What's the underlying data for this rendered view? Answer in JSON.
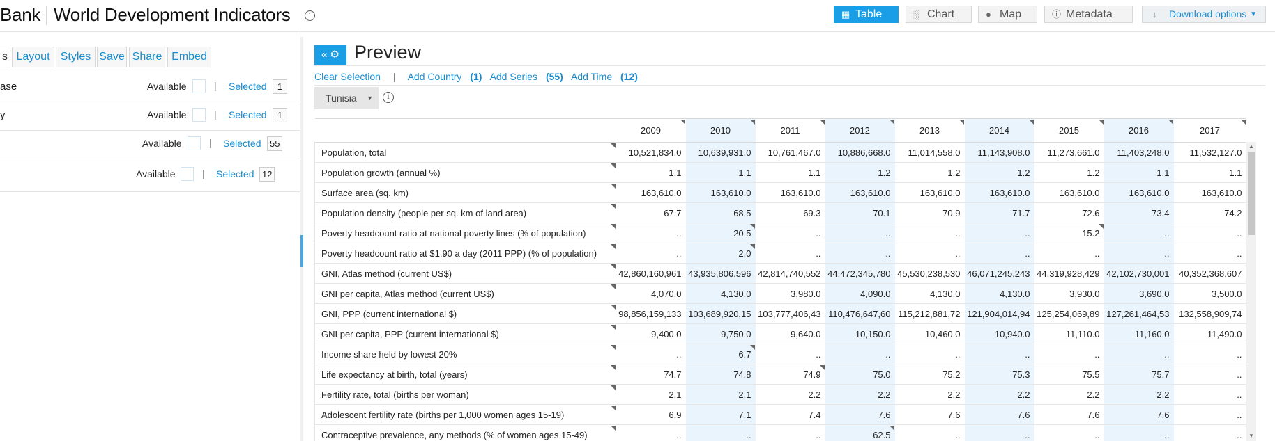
{
  "header": {
    "brand": "Bank",
    "title": "World Development Indicators",
    "views": [
      {
        "label": "Table",
        "icon": "grid-icon",
        "active": true
      },
      {
        "label": "Chart",
        "icon": "bar-chart-icon",
        "active": false
      },
      {
        "label": "Map",
        "icon": "map-pin-icon",
        "active": false
      },
      {
        "label": "Metadata",
        "icon": "info-icon",
        "active": false
      }
    ],
    "download_label": "Download options"
  },
  "left": {
    "tabs": [
      "s",
      "Layout",
      "Styles",
      "Save",
      "Share",
      "Embed"
    ],
    "variables": [
      {
        "name": "ase",
        "available_label": "Available",
        "selected_label": "Selected",
        "selected_count": "1"
      },
      {
        "name": "y",
        "available_label": "Available",
        "selected_label": "Selected",
        "selected_count": "1"
      },
      {
        "name": "",
        "available_label": "Available",
        "selected_label": "Selected",
        "selected_count": "55"
      },
      {
        "name": "",
        "available_label": "Available",
        "selected_label": "Selected",
        "selected_count": "12"
      }
    ]
  },
  "preview": {
    "title": "Preview",
    "clear_selection": "Clear Selection",
    "separator": "|",
    "add_country": "Add Country",
    "add_country_count": "(1)",
    "add_series": "Add Series",
    "add_series_count": "(55)",
    "add_time": "Add Time",
    "add_time_count": "(12)",
    "country": "Tunisia"
  },
  "table": {
    "years": [
      "2009",
      "2010",
      "2011",
      "2012",
      "2013",
      "2014",
      "2015",
      "2016",
      "2017"
    ],
    "rows": [
      {
        "name": "Population, total",
        "values": [
          "10,521,834.0",
          "10,639,931.0",
          "10,761,467.0",
          "10,886,668.0",
          "11,014,558.0",
          "11,143,908.0",
          "11,273,661.0",
          "11,403,248.0",
          "11,532,127.0"
        ]
      },
      {
        "name": "Population growth (annual %)",
        "values": [
          "1.1",
          "1.1",
          "1.1",
          "1.2",
          "1.2",
          "1.2",
          "1.2",
          "1.1",
          "1.1"
        ]
      },
      {
        "name": "Surface area (sq. km)",
        "values": [
          "163,610.0",
          "163,610.0",
          "163,610.0",
          "163,610.0",
          "163,610.0",
          "163,610.0",
          "163,610.0",
          "163,610.0",
          "163,610.0"
        ]
      },
      {
        "name": "Population density (people per sq. km of land area)",
        "values": [
          "67.7",
          "68.5",
          "69.3",
          "70.1",
          "70.9",
          "71.7",
          "72.6",
          "73.4",
          "74.2"
        ]
      },
      {
        "name": "Poverty headcount ratio at national poverty lines (% of population)",
        "values": [
          "..",
          "20.5",
          "..",
          "..",
          "..",
          "..",
          "15.2",
          "..",
          ".."
        ]
      },
      {
        "name": "Poverty headcount ratio at $1.90 a day (2011 PPP) (% of population)",
        "values": [
          "..",
          "2.0",
          "..",
          "..",
          "..",
          "..",
          "..",
          "..",
          ".."
        ]
      },
      {
        "name": "GNI, Atlas method (current US$)",
        "values": [
          "42,860,160,961",
          "43,935,806,596",
          "42,814,740,552",
          "44,472,345,780",
          "45,530,238,530",
          "46,071,245,243",
          "44,319,928,429",
          "42,102,730,001",
          "40,352,368,607"
        ]
      },
      {
        "name": "GNI per capita, Atlas method (current US$)",
        "values": [
          "4,070.0",
          "4,130.0",
          "3,980.0",
          "4,090.0",
          "4,130.0",
          "4,130.0",
          "3,930.0",
          "3,690.0",
          "3,500.0"
        ]
      },
      {
        "name": "GNI, PPP (current international $)",
        "values": [
          "98,856,159,133",
          "103,689,920,15",
          "103,777,406,43",
          "110,476,647,60",
          "115,212,881,72",
          "121,904,014,94",
          "125,254,069,89",
          "127,261,464,53",
          "132,558,909,74"
        ]
      },
      {
        "name": "GNI per capita, PPP (current international $)",
        "values": [
          "9,400.0",
          "9,750.0",
          "9,640.0",
          "10,150.0",
          "10,460.0",
          "10,940.0",
          "11,110.0",
          "11,160.0",
          "11,490.0"
        ]
      },
      {
        "name": "Income share held by lowest 20%",
        "values": [
          "..",
          "6.7",
          "..",
          "..",
          "..",
          "..",
          "..",
          "..",
          ".."
        ]
      },
      {
        "name": "Life expectancy at birth, total (years)",
        "values": [
          "74.7",
          "74.8",
          "74.9",
          "75.0",
          "75.2",
          "75.3",
          "75.5",
          "75.7",
          ".."
        ]
      },
      {
        "name": "Fertility rate, total (births per woman)",
        "values": [
          "2.1",
          "2.1",
          "2.2",
          "2.2",
          "2.2",
          "2.2",
          "2.2",
          "2.2",
          ".."
        ]
      },
      {
        "name": "Adolescent fertility rate (births per 1,000 women ages 15-19)",
        "values": [
          "6.9",
          "7.1",
          "7.4",
          "7.6",
          "7.6",
          "7.6",
          "7.6",
          "7.6",
          ".."
        ]
      },
      {
        "name": "Contraceptive prevalence, any methods (% of women ages 15-49)",
        "values": [
          "..",
          "..",
          "..",
          "62.5",
          "..",
          "..",
          "..",
          "..",
          ".."
        ]
      }
    ]
  }
}
